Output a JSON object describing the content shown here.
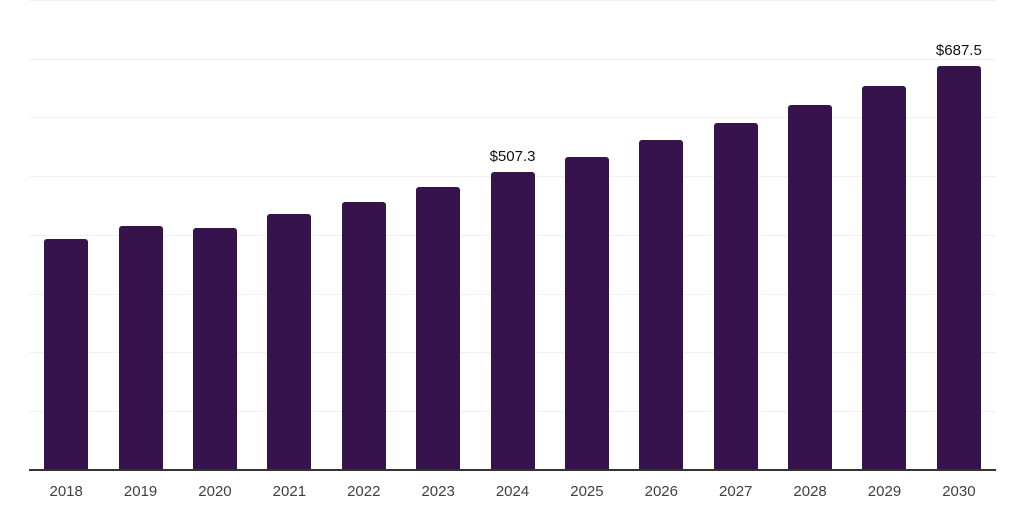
{
  "chart_data": {
    "type": "bar",
    "title": "",
    "xlabel": "",
    "ylabel": "",
    "categories": [
      "2018",
      "2019",
      "2020",
      "2021",
      "2022",
      "2023",
      "2024",
      "2025",
      "2026",
      "2027",
      "2028",
      "2029",
      "2030"
    ],
    "values": [
      394.1,
      415.9,
      412.4,
      435.2,
      456.9,
      481.2,
      507.3,
      533.7,
      561.5,
      590.7,
      621.4,
      653.6,
      687.5
    ],
    "data_labels": [
      "",
      "",
      "",
      "",
      "",
      "",
      "$507.3",
      "",
      "",
      "",
      "",
      "",
      "$687.5"
    ],
    "ylim": [
      0,
      800
    ],
    "gridline_step": 100,
    "grid_on": true,
    "legend": "none",
    "colors": {
      "bar": "#36134d",
      "gridline": "#f1f1f3",
      "axis_line": "#333333",
      "value_label": "#111111",
      "tick_label": "#404040",
      "background": "#ffffff"
    }
  }
}
